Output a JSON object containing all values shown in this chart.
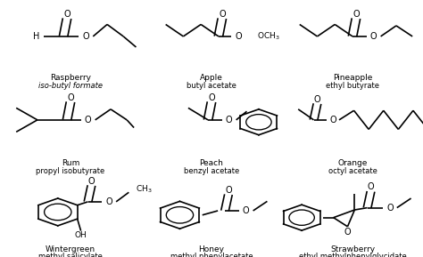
{
  "background_color": "#ffffff",
  "figure_width": 4.74,
  "figure_height": 2.89,
  "dpi": 100,
  "text_color": "#000000",
  "line_color": "#000000",
  "name_fontsize": 6.5,
  "iupac_fontsize": 6.0,
  "grid": [
    {
      "name": "Raspberry",
      "iupac": "iso-butyl formate",
      "italic": true,
      "col": 0,
      "row": 0
    },
    {
      "name": "Apple",
      "iupac": "butyl acetate",
      "italic": false,
      "col": 1,
      "row": 0
    },
    {
      "name": "Pineapple",
      "iupac": "ethyl butyrate",
      "italic": false,
      "col": 2,
      "row": 0
    },
    {
      "name": "Rum",
      "iupac": "propyl isobutyrate",
      "italic": false,
      "col": 0,
      "row": 1
    },
    {
      "name": "Peach",
      "iupac": "benzyl acetate",
      "italic": false,
      "col": 1,
      "row": 1
    },
    {
      "name": "Orange",
      "iupac": "octyl acetate",
      "italic": false,
      "col": 2,
      "row": 1
    },
    {
      "name": "Wintergreen",
      "iupac": "methyl salicylate",
      "italic": false,
      "col": 0,
      "row": 2
    },
    {
      "name": "Honey",
      "iupac": "methyl phenylacetate",
      "italic": false,
      "col": 1,
      "row": 2
    },
    {
      "name": "Strawberry",
      "iupac": "ethyl methylphenylglycidate",
      "italic": false,
      "col": 2,
      "row": 2
    }
  ]
}
